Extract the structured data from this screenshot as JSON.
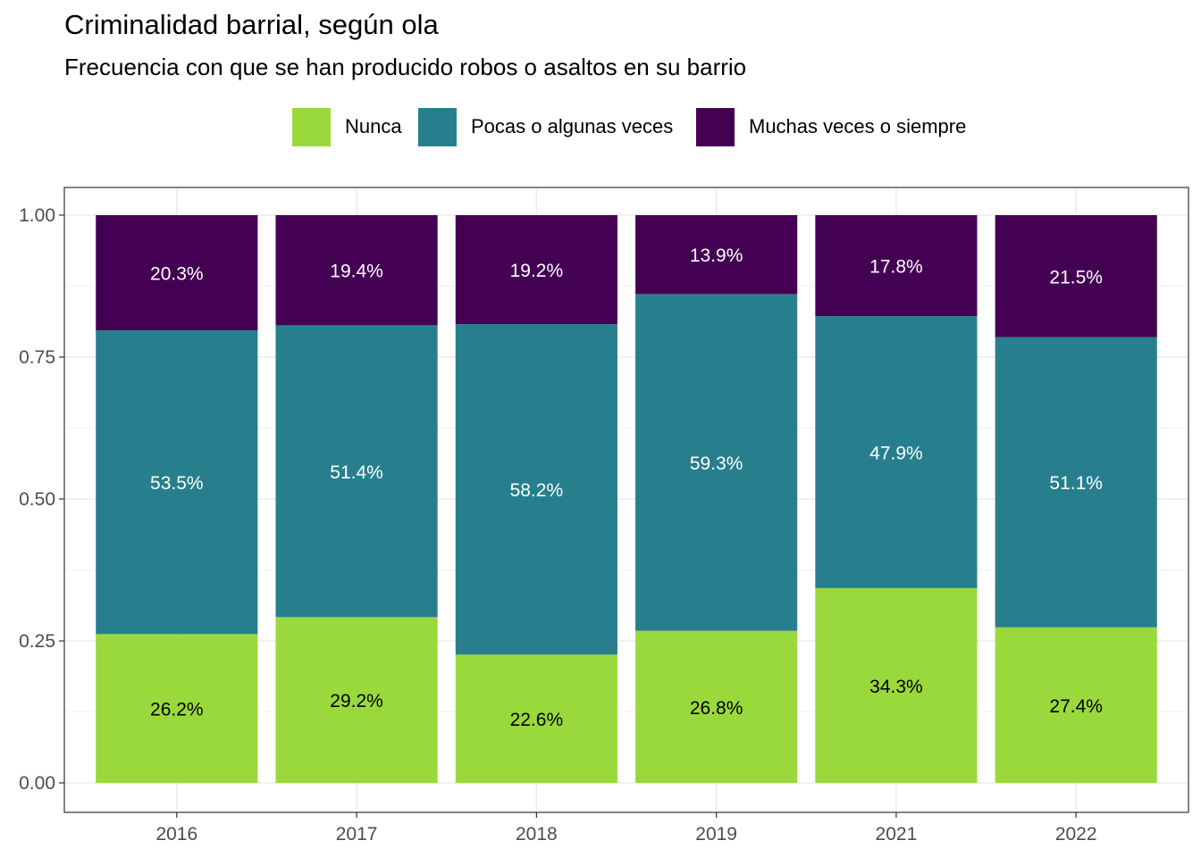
{
  "title": "Criminalidad barrial, según ola",
  "subtitle": "Frecuencia con que se han producido robos o asaltos en su barrio",
  "legend": [
    {
      "label": "Nunca",
      "color": "#9ad93c"
    },
    {
      "label": "Pocas o algunas veces",
      "color": "#277f8e"
    },
    {
      "label": "Muchas veces o siempre",
      "color": "#440154"
    }
  ],
  "chart_data": {
    "type": "bar",
    "stacked": true,
    "categories": [
      "2016",
      "2017",
      "2018",
      "2019",
      "2021",
      "2022"
    ],
    "series": [
      {
        "name": "Nunca",
        "color": "#9ad93c",
        "label_color": "#000000",
        "values": [
          0.262,
          0.292,
          0.226,
          0.268,
          0.343,
          0.274
        ],
        "labels": [
          "26.2%",
          "29.2%",
          "22.6%",
          "26.8%",
          "34.3%",
          "27.4%"
        ]
      },
      {
        "name": "Pocas o algunas veces",
        "color": "#277f8e",
        "label_color": "#ffffff",
        "values": [
          0.535,
          0.514,
          0.582,
          0.593,
          0.479,
          0.511
        ],
        "labels": [
          "53.5%",
          "51.4%",
          "58.2%",
          "59.3%",
          "47.9%",
          "51.1%"
        ]
      },
      {
        "name": "Muchas veces o siempre",
        "color": "#440154",
        "label_color": "#ffffff",
        "values": [
          0.203,
          0.194,
          0.192,
          0.139,
          0.178,
          0.215
        ],
        "labels": [
          "20.3%",
          "19.4%",
          "19.2%",
          "13.9%",
          "17.8%",
          "21.5%"
        ]
      }
    ],
    "ylim": [
      0,
      1
    ],
    "yticks": [
      0,
      0.25,
      0.5,
      0.75,
      1
    ],
    "ytick_labels": [
      "0.00",
      "0.25",
      "0.50",
      "0.75",
      "1.00"
    ],
    "grid": true,
    "legend_position": "top"
  }
}
